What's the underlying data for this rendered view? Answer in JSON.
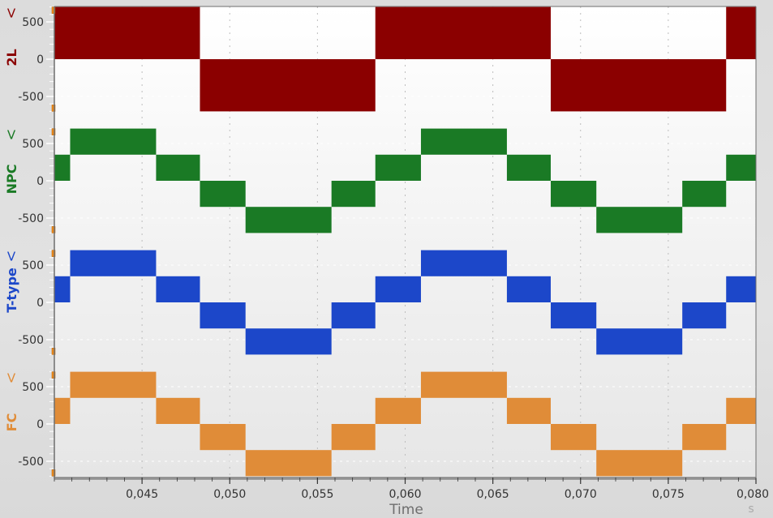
{
  "chart_data": {
    "type": "line",
    "title": "",
    "xlabel": "Time",
    "xunit": "s",
    "xlim": [
      0.04,
      0.08
    ],
    "x_ticks": [
      "0,045",
      "0,050",
      "0,055",
      "0,060",
      "0,065",
      "0,070",
      "0,075",
      "0,080"
    ],
    "x_tick_values": [
      0.045,
      0.05,
      0.055,
      0.06,
      0.065,
      0.07,
      0.075,
      0.08
    ],
    "grid": true,
    "panels": [
      {
        "name": "2L",
        "ylabel": "2L",
        "yunit": "V",
        "color": "#8b0000",
        "ylim": [
          -700,
          700
        ],
        "y_ticks": [
          "500",
          "0",
          "-500"
        ],
        "description": "Two-level PWM output, switching between +700 V and -700 V",
        "segments": [
          {
            "t0": 0.04,
            "t1": 0.0483,
            "low": 0,
            "high": 700
          },
          {
            "t0": 0.0483,
            "t1": 0.0583,
            "low": -700,
            "high": 0
          },
          {
            "t0": 0.0583,
            "t1": 0.0683,
            "low": 0,
            "high": 700
          },
          {
            "t0": 0.0683,
            "t1": 0.0783,
            "low": -700,
            "high": 0
          },
          {
            "t0": 0.0783,
            "t1": 0.08,
            "low": 0,
            "high": 700
          }
        ]
      },
      {
        "name": "NPC",
        "ylabel": "NPC",
        "yunit": "V",
        "color": "#1a7a25",
        "ylim": [
          -700,
          700
        ],
        "y_ticks": [
          "500",
          "0",
          "-500"
        ],
        "description": "Three-level NPC multilevel staircase PWM output",
        "segments": [
          {
            "t0": 0.04,
            "t1": 0.0409,
            "low": 0,
            "high": 350
          },
          {
            "t0": 0.0409,
            "t1": 0.0458,
            "low": 350,
            "high": 700
          },
          {
            "t0": 0.0458,
            "t1": 0.0483,
            "low": 0,
            "high": 350
          },
          {
            "t0": 0.0483,
            "t1": 0.0509,
            "low": -350,
            "high": 0
          },
          {
            "t0": 0.0509,
            "t1": 0.0558,
            "low": -700,
            "high": -350
          },
          {
            "t0": 0.0558,
            "t1": 0.0583,
            "low": -350,
            "high": 0
          },
          {
            "t0": 0.0583,
            "t1": 0.0609,
            "low": 0,
            "high": 350
          },
          {
            "t0": 0.0609,
            "t1": 0.0658,
            "low": 350,
            "high": 700
          },
          {
            "t0": 0.0658,
            "t1": 0.0683,
            "low": 0,
            "high": 350
          },
          {
            "t0": 0.0683,
            "t1": 0.0709,
            "low": -350,
            "high": 0
          },
          {
            "t0": 0.0709,
            "t1": 0.0758,
            "low": -700,
            "high": -350
          },
          {
            "t0": 0.0758,
            "t1": 0.0783,
            "low": -350,
            "high": 0
          },
          {
            "t0": 0.0783,
            "t1": 0.08,
            "low": 0,
            "high": 350
          }
        ]
      },
      {
        "name": "T-type",
        "ylabel": "T-type",
        "yunit": "V",
        "color": "#1c47c9",
        "ylim": [
          -700,
          700
        ],
        "y_ticks": [
          "500",
          "0",
          "-500"
        ],
        "description": "Three-level T-type multilevel staircase PWM output",
        "segments": [
          {
            "t0": 0.04,
            "t1": 0.0409,
            "low": 0,
            "high": 350
          },
          {
            "t0": 0.0409,
            "t1": 0.0458,
            "low": 350,
            "high": 700
          },
          {
            "t0": 0.0458,
            "t1": 0.0483,
            "low": 0,
            "high": 350
          },
          {
            "t0": 0.0483,
            "t1": 0.0509,
            "low": -350,
            "high": 0
          },
          {
            "t0": 0.0509,
            "t1": 0.0558,
            "low": -700,
            "high": -350
          },
          {
            "t0": 0.0558,
            "t1": 0.0583,
            "low": -350,
            "high": 0
          },
          {
            "t0": 0.0583,
            "t1": 0.0609,
            "low": 0,
            "high": 350
          },
          {
            "t0": 0.0609,
            "t1": 0.0658,
            "low": 350,
            "high": 700
          },
          {
            "t0": 0.0658,
            "t1": 0.0683,
            "low": 0,
            "high": 350
          },
          {
            "t0": 0.0683,
            "t1": 0.0709,
            "low": -350,
            "high": 0
          },
          {
            "t0": 0.0709,
            "t1": 0.0758,
            "low": -700,
            "high": -350
          },
          {
            "t0": 0.0758,
            "t1": 0.0783,
            "low": -350,
            "high": 0
          },
          {
            "t0": 0.0783,
            "t1": 0.08,
            "low": 0,
            "high": 350
          }
        ]
      },
      {
        "name": "FC",
        "ylabel": "FC",
        "yunit": "V",
        "color": "#e08c38",
        "ylim": [
          -700,
          700
        ],
        "y_ticks": [
          "500",
          "0",
          "-500"
        ],
        "description": "Three-level flying-capacitor multilevel staircase PWM output",
        "segments": [
          {
            "t0": 0.04,
            "t1": 0.0409,
            "low": 0,
            "high": 350
          },
          {
            "t0": 0.0409,
            "t1": 0.0458,
            "low": 350,
            "high": 700
          },
          {
            "t0": 0.0458,
            "t1": 0.0483,
            "low": 0,
            "high": 350
          },
          {
            "t0": 0.0483,
            "t1": 0.0509,
            "low": -350,
            "high": 0
          },
          {
            "t0": 0.0509,
            "t1": 0.0558,
            "low": -700,
            "high": -350
          },
          {
            "t0": 0.0558,
            "t1": 0.0583,
            "low": -350,
            "high": 0
          },
          {
            "t0": 0.0583,
            "t1": 0.0609,
            "low": 0,
            "high": 350
          },
          {
            "t0": 0.0609,
            "t1": 0.0658,
            "low": 350,
            "high": 700
          },
          {
            "t0": 0.0658,
            "t1": 0.0683,
            "low": 0,
            "high": 350
          },
          {
            "t0": 0.0683,
            "t1": 0.0709,
            "low": -350,
            "high": 0
          },
          {
            "t0": 0.0709,
            "t1": 0.0758,
            "low": -700,
            "high": -350
          },
          {
            "t0": 0.0758,
            "t1": 0.0783,
            "low": -350,
            "high": 0
          },
          {
            "t0": 0.0783,
            "t1": 0.08,
            "low": 0,
            "high": 350
          }
        ]
      }
    ]
  },
  "colors": {
    "background": "#dddddd",
    "plot_background": "#f6f6f6",
    "axis_line": "#6e6e6e",
    "grid": "#bdbdbd",
    "marker": "#f08c1a"
  }
}
